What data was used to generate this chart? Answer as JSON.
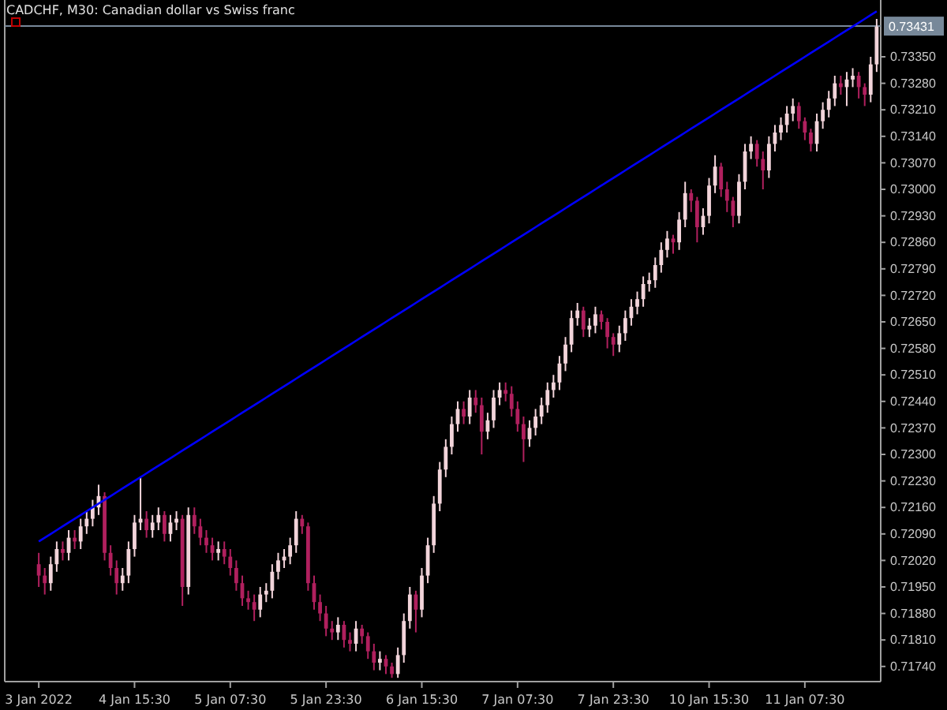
{
  "chart_data": {
    "type": "candlestick",
    "title": "CADCHF, M30:  Canadian dollar vs Swiss franc",
    "categories": [
      "3 Jan 2022",
      null,
      null,
      null,
      null,
      null,
      null,
      null,
      null,
      null,
      null,
      null,
      null,
      null,
      null,
      null,
      "4 Jan 15:30",
      null,
      null,
      null,
      null,
      null,
      null,
      null,
      null,
      null,
      null,
      null,
      null,
      null,
      null,
      null,
      "5 Jan 07:30",
      null,
      null,
      null,
      null,
      null,
      null,
      null,
      null,
      null,
      null,
      null,
      null,
      null,
      null,
      null,
      "5 Jan 23:30",
      null,
      null,
      null,
      null,
      null,
      null,
      null,
      null,
      null,
      null,
      null,
      null,
      null,
      null,
      null,
      "6 Jan 15:30",
      null,
      null,
      null,
      null,
      null,
      null,
      null,
      null,
      null,
      null,
      null,
      null,
      null,
      null,
      null,
      "7 Jan 07:30",
      null,
      null,
      null,
      null,
      null,
      null,
      null,
      null,
      null,
      null,
      null,
      null,
      null,
      null,
      null,
      "7 Jan 23:30",
      null,
      null,
      null,
      null,
      null,
      null,
      null,
      null,
      null,
      null,
      null,
      null,
      null,
      null,
      null,
      "10 Jan 15:30",
      null,
      null,
      null,
      null,
      null,
      null,
      null,
      null,
      null,
      null,
      null,
      null,
      null,
      null,
      null,
      "11 Jan 07:30",
      null,
      null,
      null,
      null,
      null,
      null,
      null,
      null,
      null,
      null,
      null,
      null
    ],
    "ohlc": [
      [
        0.7201,
        0.7204,
        0.7195,
        0.7198
      ],
      [
        0.7198,
        0.72,
        0.7193,
        0.7196
      ],
      [
        0.7196,
        0.7203,
        0.7194,
        0.7201
      ],
      [
        0.7201,
        0.7207,
        0.7199,
        0.7205
      ],
      [
        0.7205,
        0.7207,
        0.7202,
        0.7204
      ],
      [
        0.7204,
        0.721,
        0.7202,
        0.7208
      ],
      [
        0.7208,
        0.721,
        0.7205,
        0.7207
      ],
      [
        0.7207,
        0.7213,
        0.7205,
        0.7211
      ],
      [
        0.7211,
        0.7215,
        0.7209,
        0.7213
      ],
      [
        0.7213,
        0.7218,
        0.7211,
        0.7216
      ],
      [
        0.7216,
        0.7222,
        0.7214,
        0.7219
      ],
      [
        0.7219,
        0.722,
        0.7202,
        0.7204
      ],
      [
        0.7204,
        0.7206,
        0.7198,
        0.72
      ],
      [
        0.72,
        0.7202,
        0.7193,
        0.7196
      ],
      [
        0.7196,
        0.72,
        0.7194,
        0.7198
      ],
      [
        0.7198,
        0.7207,
        0.7196,
        0.7205
      ],
      [
        0.7205,
        0.7214,
        0.7203,
        0.7212
      ],
      [
        0.7212,
        0.7224,
        0.721,
        0.7213
      ],
      [
        0.7213,
        0.7215,
        0.7208,
        0.721
      ],
      [
        0.721,
        0.7214,
        0.7208,
        0.7212
      ],
      [
        0.7212,
        0.7216,
        0.721,
        0.7214
      ],
      [
        0.7214,
        0.7215,
        0.7207,
        0.7209
      ],
      [
        0.7209,
        0.7214,
        0.7207,
        0.7212
      ],
      [
        0.7212,
        0.7215,
        0.721,
        0.7213
      ],
      [
        0.7213,
        0.7214,
        0.719,
        0.7195
      ],
      [
        0.7195,
        0.7216,
        0.7193,
        0.7214
      ],
      [
        0.7214,
        0.7216,
        0.7209,
        0.7211
      ],
      [
        0.7211,
        0.7213,
        0.7206,
        0.7208
      ],
      [
        0.7208,
        0.721,
        0.7204,
        0.7206
      ],
      [
        0.7206,
        0.7208,
        0.7202,
        0.7204
      ],
      [
        0.7204,
        0.7207,
        0.7202,
        0.7205
      ],
      [
        0.7205,
        0.7207,
        0.7201,
        0.7203
      ],
      [
        0.7203,
        0.7205,
        0.7198,
        0.72
      ],
      [
        0.72,
        0.7202,
        0.7194,
        0.7196
      ],
      [
        0.7196,
        0.7198,
        0.719,
        0.7192
      ],
      [
        0.7192,
        0.7194,
        0.7189,
        0.7191
      ],
      [
        0.7191,
        0.7193,
        0.7186,
        0.7189
      ],
      [
        0.7189,
        0.7195,
        0.7187,
        0.7193
      ],
      [
        0.7193,
        0.7196,
        0.7191,
        0.7194
      ],
      [
        0.7194,
        0.7201,
        0.7192,
        0.7199
      ],
      [
        0.7199,
        0.7204,
        0.7197,
        0.7202
      ],
      [
        0.7202,
        0.7205,
        0.72,
        0.7203
      ],
      [
        0.7203,
        0.7208,
        0.7201,
        0.7206
      ],
      [
        0.7206,
        0.7215,
        0.7204,
        0.7213
      ],
      [
        0.7213,
        0.7214,
        0.7209,
        0.7211
      ],
      [
        0.7211,
        0.7212,
        0.7194,
        0.7196
      ],
      [
        0.7196,
        0.7198,
        0.7189,
        0.7191
      ],
      [
        0.7191,
        0.7193,
        0.7186,
        0.7188
      ],
      [
        0.7188,
        0.719,
        0.7182,
        0.7184
      ],
      [
        0.7184,
        0.7186,
        0.7181,
        0.7183
      ],
      [
        0.7183,
        0.7187,
        0.7181,
        0.7185
      ],
      [
        0.7185,
        0.7186,
        0.7179,
        0.7181
      ],
      [
        0.7181,
        0.7183,
        0.7178,
        0.718
      ],
      [
        0.718,
        0.7186,
        0.7178,
        0.7184
      ],
      [
        0.7184,
        0.7185,
        0.718,
        0.7182
      ],
      [
        0.7182,
        0.7183,
        0.7176,
        0.7178
      ],
      [
        0.7178,
        0.718,
        0.7173,
        0.7175
      ],
      [
        0.7175,
        0.7178,
        0.7173,
        0.7176
      ],
      [
        0.7176,
        0.7177,
        0.7172,
        0.7174
      ],
      [
        0.7174,
        0.7175,
        0.7171,
        0.7172
      ],
      [
        0.7172,
        0.7179,
        0.7171,
        0.7177
      ],
      [
        0.7177,
        0.7188,
        0.7175,
        0.7186
      ],
      [
        0.7186,
        0.7195,
        0.7184,
        0.7193
      ],
      [
        0.7193,
        0.7194,
        0.7183,
        0.7189
      ],
      [
        0.7189,
        0.72,
        0.7187,
        0.7198
      ],
      [
        0.7198,
        0.7208,
        0.7196,
        0.7206
      ],
      [
        0.7206,
        0.7219,
        0.7204,
        0.7217
      ],
      [
        0.7217,
        0.7228,
        0.7215,
        0.7226
      ],
      [
        0.7226,
        0.7234,
        0.7224,
        0.7232
      ],
      [
        0.7232,
        0.724,
        0.723,
        0.7238
      ],
      [
        0.7238,
        0.7244,
        0.7236,
        0.7242
      ],
      [
        0.7242,
        0.7244,
        0.7238,
        0.724
      ],
      [
        0.724,
        0.7247,
        0.7238,
        0.7245
      ],
      [
        0.7245,
        0.7247,
        0.7241,
        0.7243
      ],
      [
        0.7243,
        0.7245,
        0.723,
        0.7236
      ],
      [
        0.7236,
        0.7241,
        0.7234,
        0.7239
      ],
      [
        0.7239,
        0.7247,
        0.7237,
        0.7245
      ],
      [
        0.7245,
        0.7249,
        0.7243,
        0.7247
      ],
      [
        0.7247,
        0.7249,
        0.7244,
        0.7246
      ],
      [
        0.7246,
        0.7248,
        0.724,
        0.7242
      ],
      [
        0.7242,
        0.7244,
        0.7236,
        0.7238
      ],
      [
        0.7238,
        0.724,
        0.7228,
        0.7234
      ],
      [
        0.7234,
        0.7239,
        0.7232,
        0.7237
      ],
      [
        0.7237,
        0.7242,
        0.7235,
        0.724
      ],
      [
        0.724,
        0.7245,
        0.7238,
        0.7243
      ],
      [
        0.7243,
        0.7249,
        0.7241,
        0.7247
      ],
      [
        0.7247,
        0.7251,
        0.7245,
        0.7249
      ],
      [
        0.7249,
        0.7256,
        0.7247,
        0.7254
      ],
      [
        0.7254,
        0.7261,
        0.7252,
        0.7259
      ],
      [
        0.7259,
        0.7268,
        0.7257,
        0.7266
      ],
      [
        0.7266,
        0.727,
        0.7264,
        0.7268
      ],
      [
        0.7268,
        0.7269,
        0.7261,
        0.7263
      ],
      [
        0.7263,
        0.7266,
        0.7261,
        0.7264
      ],
      [
        0.7264,
        0.7269,
        0.7262,
        0.7267
      ],
      [
        0.7267,
        0.7268,
        0.7263,
        0.7265
      ],
      [
        0.7265,
        0.7266,
        0.7258,
        0.7261
      ],
      [
        0.7261,
        0.7262,
        0.7256,
        0.7259
      ],
      [
        0.7259,
        0.7264,
        0.7257,
        0.7262
      ],
      [
        0.7262,
        0.7268,
        0.726,
        0.7266
      ],
      [
        0.7266,
        0.7271,
        0.7264,
        0.7269
      ],
      [
        0.7269,
        0.7273,
        0.7267,
        0.7271
      ],
      [
        0.7271,
        0.7277,
        0.7269,
        0.7275
      ],
      [
        0.7275,
        0.7278,
        0.7273,
        0.7276
      ],
      [
        0.7276,
        0.7282,
        0.7274,
        0.728
      ],
      [
        0.728,
        0.7286,
        0.7278,
        0.7284
      ],
      [
        0.7284,
        0.7289,
        0.7282,
        0.7287
      ],
      [
        0.7287,
        0.7288,
        0.7283,
        0.7286
      ],
      [
        0.7286,
        0.7294,
        0.7284,
        0.7292
      ],
      [
        0.7292,
        0.7302,
        0.729,
        0.7299
      ],
      [
        0.7299,
        0.73,
        0.7294,
        0.7297
      ],
      [
        0.7297,
        0.7298,
        0.7286,
        0.729
      ],
      [
        0.729,
        0.7295,
        0.7288,
        0.7293
      ],
      [
        0.7293,
        0.7303,
        0.7291,
        0.7301
      ],
      [
        0.7301,
        0.7309,
        0.7299,
        0.7306
      ],
      [
        0.7306,
        0.7307,
        0.7298,
        0.73
      ],
      [
        0.73,
        0.7302,
        0.7294,
        0.7297
      ],
      [
        0.7297,
        0.7298,
        0.729,
        0.7293
      ],
      [
        0.7293,
        0.7304,
        0.7291,
        0.7302
      ],
      [
        0.7302,
        0.7312,
        0.73,
        0.731
      ],
      [
        0.731,
        0.7314,
        0.7308,
        0.7312
      ],
      [
        0.7312,
        0.7313,
        0.7306,
        0.7308
      ],
      [
        0.7308,
        0.731,
        0.73,
        0.7305
      ],
      [
        0.7305,
        0.7314,
        0.7303,
        0.7312
      ],
      [
        0.7312,
        0.7317,
        0.731,
        0.7315
      ],
      [
        0.7315,
        0.7319,
        0.7313,
        0.7317
      ],
      [
        0.7317,
        0.7322,
        0.7315,
        0.732
      ],
      [
        0.732,
        0.7324,
        0.7318,
        0.7322
      ],
      [
        0.7322,
        0.7323,
        0.7316,
        0.7318
      ],
      [
        0.7318,
        0.7319,
        0.7313,
        0.7315
      ],
      [
        0.7315,
        0.7316,
        0.731,
        0.7312
      ],
      [
        0.7312,
        0.732,
        0.731,
        0.7318
      ],
      [
        0.7318,
        0.7323,
        0.7316,
        0.7321
      ],
      [
        0.7321,
        0.7326,
        0.7319,
        0.7324
      ],
      [
        0.7324,
        0.733,
        0.7322,
        0.7328
      ],
      [
        0.7328,
        0.733,
        0.7325,
        0.7327
      ],
      [
        0.7327,
        0.7331,
        0.7322,
        0.7329
      ],
      [
        0.7329,
        0.7332,
        0.7327,
        0.733
      ],
      [
        0.733,
        0.7331,
        0.7324,
        0.7327
      ],
      [
        0.7327,
        0.7328,
        0.7322,
        0.7325
      ],
      [
        0.7325,
        0.7335,
        0.7323,
        0.7333
      ],
      [
        0.7333,
        0.7345,
        0.7331,
        0.7343
      ]
    ],
    "series": [
      {
        "type": "line",
        "color": "#0000ff",
        "values": [
          0.7207,
          0.7208,
          0.7209,
          0.721,
          0.7211,
          0.7212,
          0.7213,
          0.7214,
          0.7215,
          0.7216,
          0.7217,
          0.7218,
          0.7219,
          0.722,
          0.7221,
          0.7222,
          0.7223,
          0.7224,
          0.7225,
          0.7226,
          0.7227,
          0.7228,
          0.7229,
          0.723,
          0.7231,
          0.7232,
          0.7233,
          0.7234,
          0.7235,
          0.7236,
          0.7237,
          0.7238,
          0.7239,
          0.724,
          0.7241,
          0.7242,
          0.7243,
          0.7244,
          0.7245,
          0.7246,
          0.7247,
          0.7248,
          0.7249,
          0.725,
          0.7251,
          0.7252,
          0.7253,
          0.7254,
          0.7255,
          0.7256,
          0.7257,
          0.7258,
          0.7259,
          0.726,
          0.7261,
          0.7262,
          0.7263,
          0.7264,
          0.7265,
          0.7266,
          0.7267,
          0.7268,
          0.7269,
          0.727,
          0.7271,
          0.7272,
          0.7273,
          0.7274,
          0.7275,
          0.7276,
          0.7277,
          0.7278,
          0.7279,
          0.728,
          0.7281,
          0.7282,
          0.7283,
          0.7284,
          0.7285,
          0.7286,
          0.7287,
          0.7288,
          0.7289,
          0.729,
          0.7291,
          0.7292,
          0.7293,
          0.7294,
          0.7295,
          0.7296,
          0.7297,
          0.7298,
          0.7299,
          0.73,
          0.7301,
          0.7302,
          0.7303,
          0.7304,
          0.7305,
          0.7306,
          0.7307,
          0.7308,
          0.7309,
          0.731,
          0.7311,
          0.7312,
          0.7313,
          0.7314,
          0.7315,
          0.7316,
          0.7317,
          0.7318,
          0.7319,
          0.732,
          0.7321,
          0.7322,
          0.7323,
          0.7324,
          0.7325,
          0.7326,
          0.7327,
          0.7328,
          0.7329,
          0.733,
          0.7331,
          0.7332,
          0.7333,
          0.7334,
          0.7335,
          0.7336,
          0.7337,
          0.7338,
          0.7339,
          0.734,
          0.7341,
          0.7342,
          0.7343,
          0.7344,
          0.7345,
          0.7346,
          0.7347
        ]
      }
    ],
    "ylim": [
      0.717,
      0.735
    ],
    "yticks": [
      {
        "value": 0.7174,
        "label": "0.71740"
      },
      {
        "value": 0.7181,
        "label": "0.71810"
      },
      {
        "value": 0.7188,
        "label": "0.71880"
      },
      {
        "value": 0.7195,
        "label": "0.71950"
      },
      {
        "value": 0.7202,
        "label": "0.72020"
      },
      {
        "value": 0.7209,
        "label": "0.72090"
      },
      {
        "value": 0.7216,
        "label": "0.72160"
      },
      {
        "value": 0.7223,
        "label": "0.72230"
      },
      {
        "value": 0.723,
        "label": "0.72300"
      },
      {
        "value": 0.7237,
        "label": "0.72370"
      },
      {
        "value": 0.7244,
        "label": "0.72440"
      },
      {
        "value": 0.7251,
        "label": "0.72510"
      },
      {
        "value": 0.7258,
        "label": "0.72580"
      },
      {
        "value": 0.7265,
        "label": "0.72650"
      },
      {
        "value": 0.7272,
        "label": "0.72720"
      },
      {
        "value": 0.7279,
        "label": "0.72790"
      },
      {
        "value": 0.7286,
        "label": "0.72860"
      },
      {
        "value": 0.7293,
        "label": "0.72930"
      },
      {
        "value": 0.73,
        "label": "0.73000"
      },
      {
        "value": 0.7307,
        "label": "0.73070"
      },
      {
        "value": 0.7314,
        "label": "0.73140"
      },
      {
        "value": 0.7321,
        "label": "0.73210"
      },
      {
        "value": 0.7328,
        "label": "0.73280"
      },
      {
        "value": 0.7335,
        "label": "0.73350"
      }
    ],
    "ref_lines": [
      {
        "axis": "y",
        "value": 0.73431,
        "label": "0.73431",
        "color": "#778899"
      }
    ]
  }
}
